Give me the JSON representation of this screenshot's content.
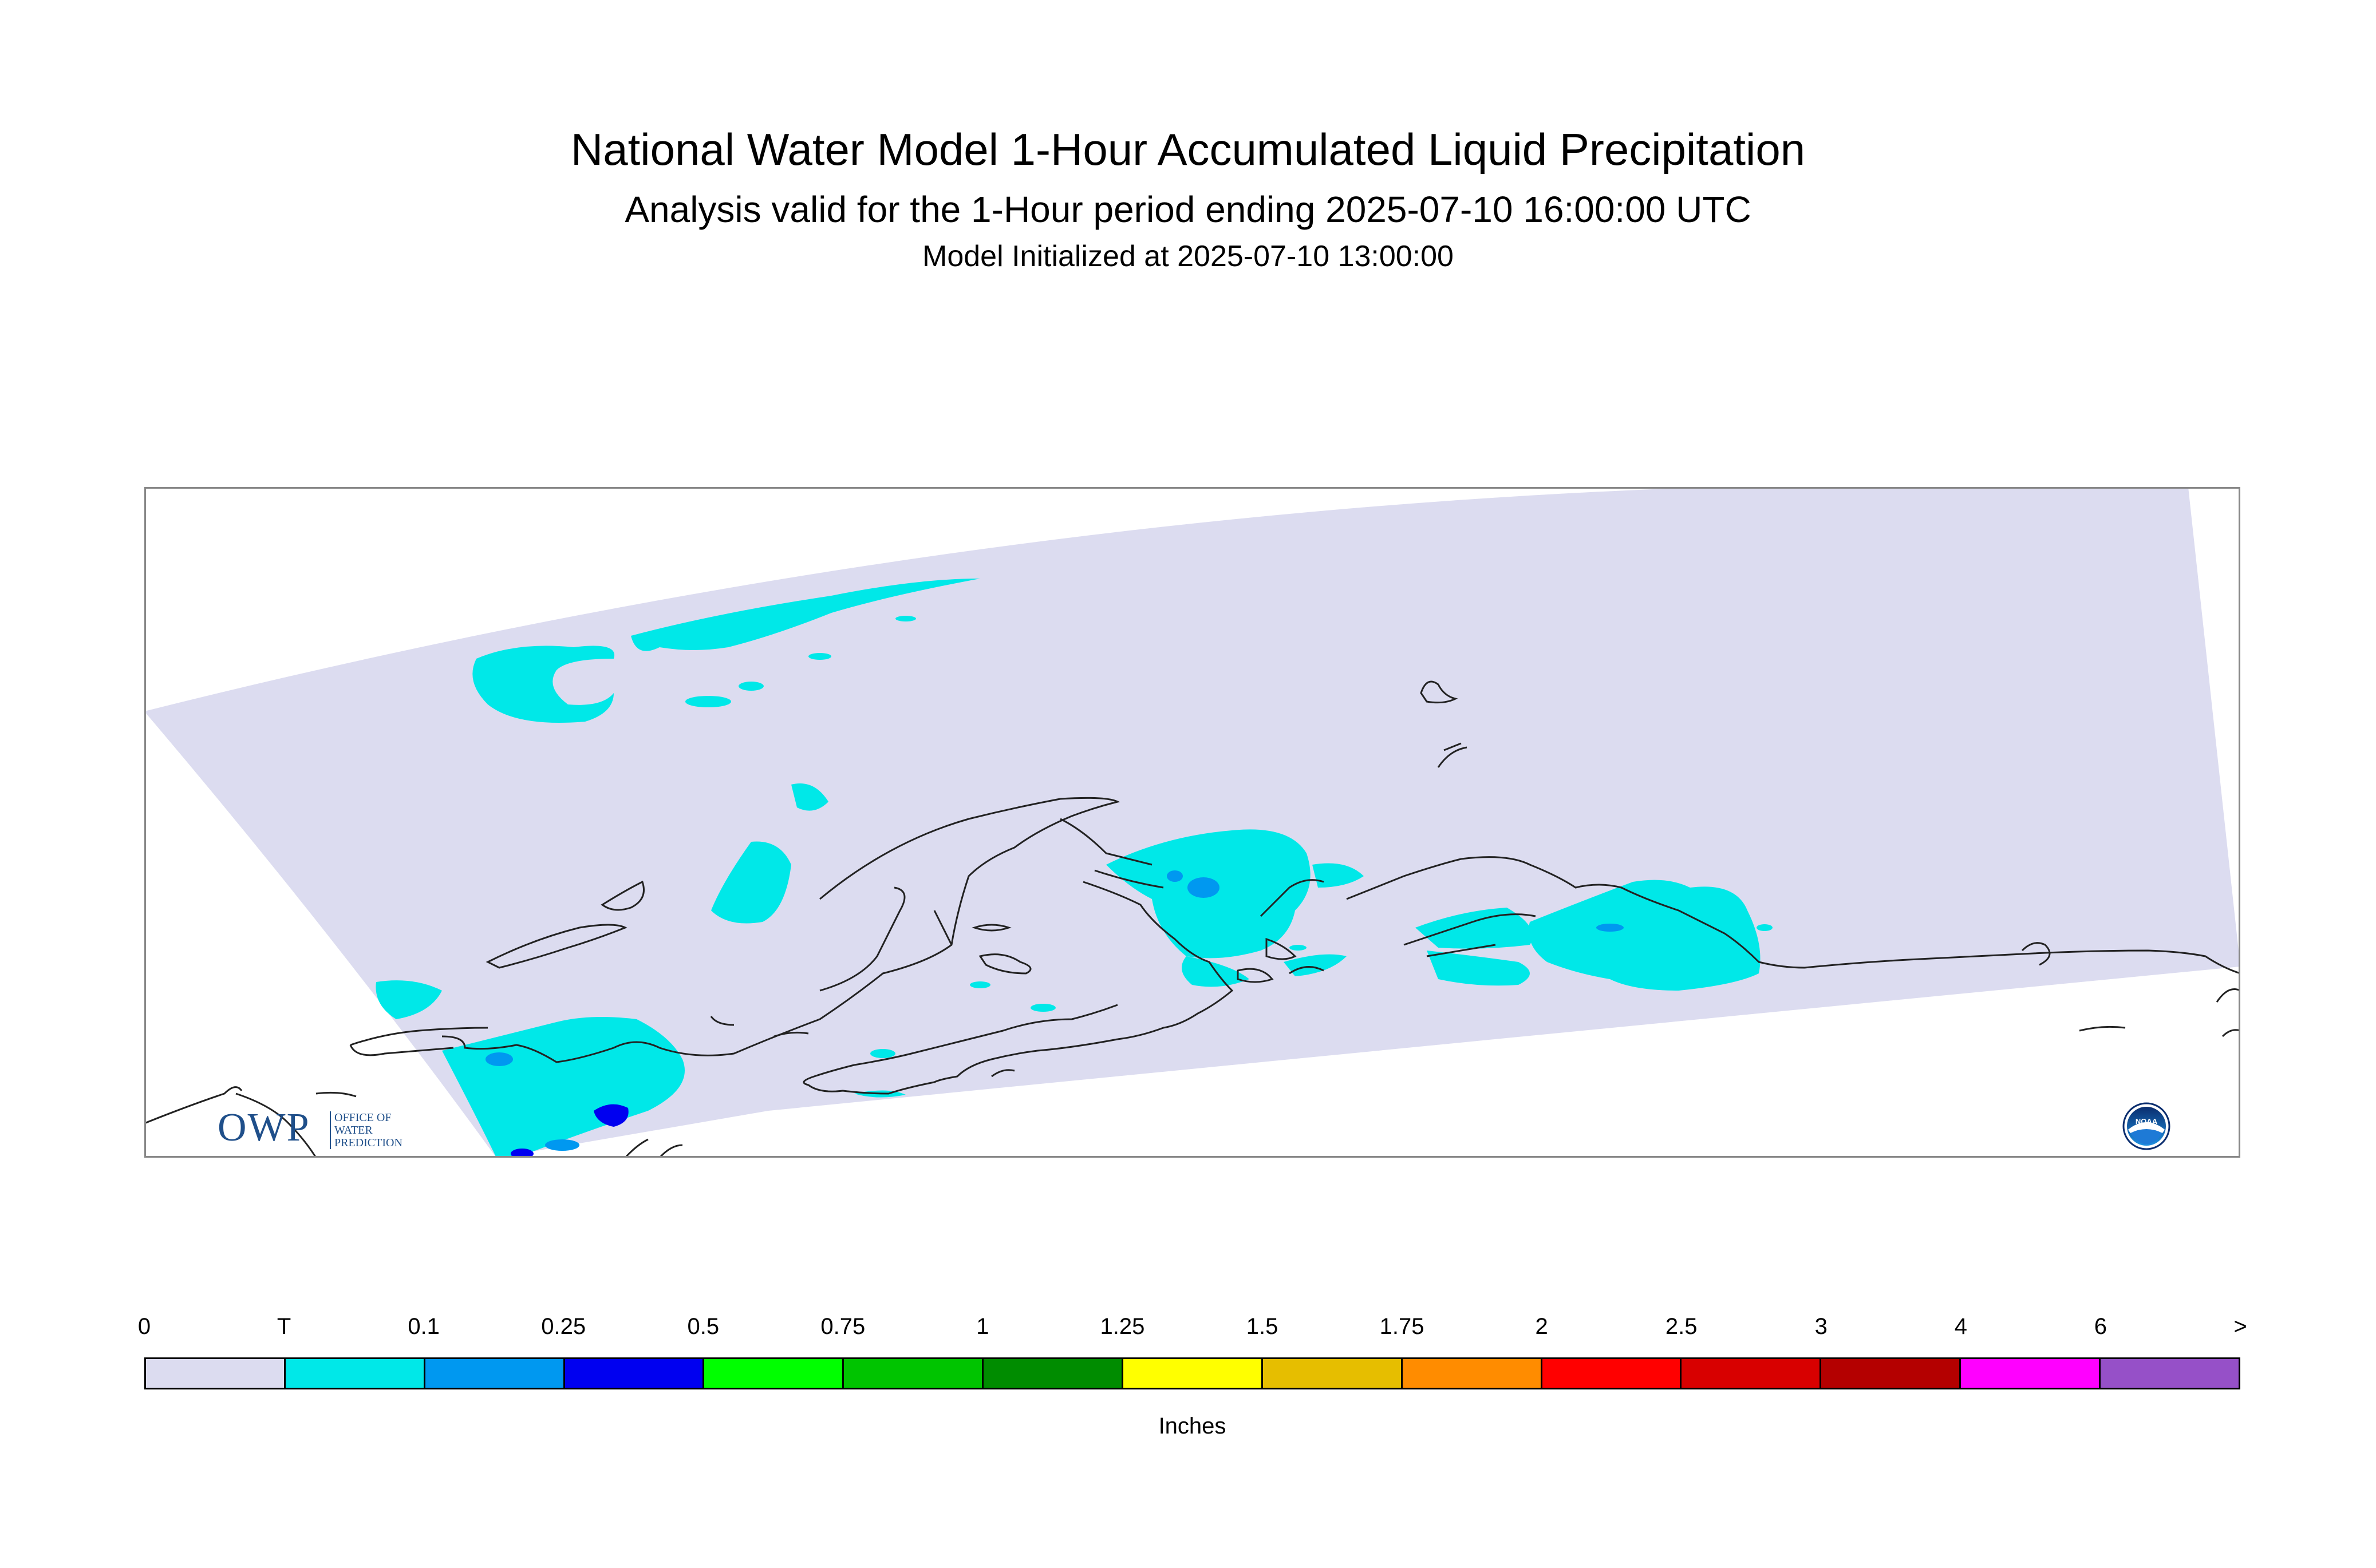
{
  "header": {
    "title": "National Water Model 1-Hour Accumulated Liquid Precipitation",
    "subtitle": "Analysis valid for the 1-Hour period ending 2025-07-10 16:00:00 UTC",
    "init_line": "Model Initialized at 2025-07-10 13:00:00"
  },
  "legend": {
    "units": "Inches",
    "ticks": [
      "0",
      "T",
      "0.1",
      "0.25",
      "0.5",
      "0.75",
      "1",
      "1.25",
      "1.5",
      "1.75",
      "2",
      "2.5",
      "3",
      "4",
      "6",
      ">"
    ],
    "colors": [
      "#dcdcf0",
      "#00e8e8",
      "#0098f0",
      "#0000f0",
      "#00ff00",
      "#00c400",
      "#008c00",
      "#ffff00",
      "#e6be00",
      "#ff8c00",
      "#ff0000",
      "#d80000",
      "#b40000",
      "#ff00ff",
      "#9650c8"
    ]
  },
  "logos": {
    "owp_big": "OWP",
    "owp_lines": [
      "OFFICE OF",
      "WATER",
      "PREDICTION"
    ],
    "noaa_label": "NOAA"
  },
  "map": {
    "domain_fill": "#dcdcf0",
    "trace_color": "#00e8e8",
    "light_color": "#0098f0",
    "heavy_color": "#0000f0",
    "coast_color": "#222222"
  }
}
